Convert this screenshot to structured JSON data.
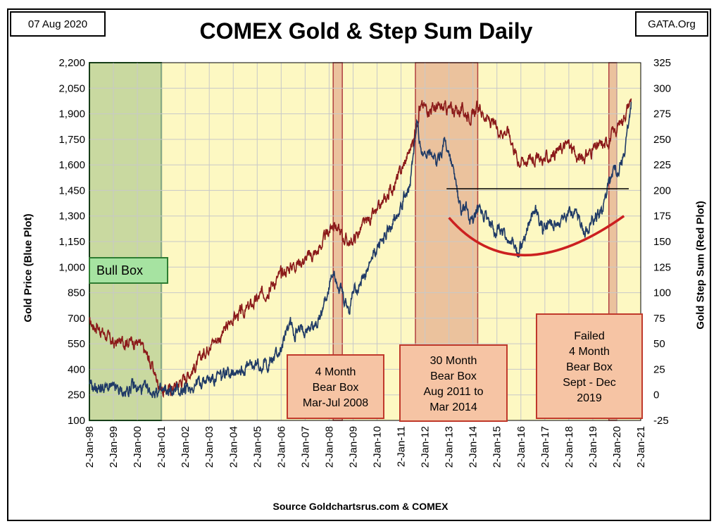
{
  "date_badge": "07 Aug 2020",
  "site_badge": "GATA.Org",
  "source": "Source Goldchartsrus.com & COMEX",
  "colors": {
    "plot_bg": "#fdf8c2",
    "gold_line": "#1f3a66",
    "step_sum_line": "#8b1a1a",
    "bull_box": "#c9d9a0",
    "bear_box": "#e8b896",
    "label_box": "#f6c4a4",
    "bull_label_box": "#a6e3a1",
    "trend_curve": "#cc2020"
  },
  "chart_data": {
    "type": "line",
    "title": "COMEX Gold & Step Sum Daily",
    "ylabel": "Gold Price   (Blue Plot)",
    "y2label": "Gold Step Sum   (Red Plot)",
    "ylim": [
      100,
      2200
    ],
    "y2lim": [
      -25,
      325
    ],
    "yticks": [
      "2,200",
      "2,050",
      "1,900",
      "1,750",
      "1,600",
      "1,450",
      "1,300",
      "1,150",
      "1,000",
      "850",
      "700",
      "550",
      "400",
      "250",
      "100"
    ],
    "y2ticks": [
      "325",
      "300",
      "275",
      "250",
      "225",
      "200",
      "175",
      "150",
      "125",
      "100",
      "75",
      "50",
      "25",
      "0",
      "-25"
    ],
    "xticks": [
      "2-Jan-98",
      "2-Jan-99",
      "2-Jan-00",
      "2-Jan-01",
      "2-Jan-02",
      "2-Jan-03",
      "2-Jan-04",
      "2-Jan-05",
      "2-Jan-06",
      "2-Jan-07",
      "2-Jan-08",
      "2-Jan-09",
      "2-Jan-10",
      "2-Jan-11",
      "2-Jan-12",
      "2-Jan-13",
      "2-Jan-14",
      "2-Jan-15",
      "2-Jan-16",
      "2-Jan-17",
      "2-Jan-18",
      "2-Jan-19",
      "2-Jan-20",
      "2-Jan-21"
    ],
    "grid": true,
    "series": [
      {
        "name": "Gold Price",
        "axis": "left",
        "x": [
          1998.0,
          1998.5,
          1999.0,
          1999.5,
          1999.75,
          2000.0,
          2000.5,
          2001.0,
          2001.5,
          2002.0,
          2002.5,
          2003.0,
          2003.5,
          2004.0,
          2004.5,
          2005.0,
          2005.5,
          2006.0,
          2006.4,
          2006.6,
          2007.0,
          2007.5,
          2008.0,
          2008.2,
          2008.6,
          2008.85,
          2009.0,
          2009.5,
          2010.0,
          2010.5,
          2011.0,
          2011.4,
          2011.67,
          2011.9,
          2012.2,
          2012.5,
          2012.8,
          2013.0,
          2013.3,
          2013.5,
          2013.7,
          2014.0,
          2014.2,
          2014.5,
          2015.0,
          2015.5,
          2015.9,
          2016.3,
          2016.6,
          2016.9,
          2017.3,
          2017.6,
          2018.0,
          2018.3,
          2018.7,
          2019.0,
          2019.4,
          2019.7,
          2020.0,
          2020.3,
          2020.6
        ],
        "y": [
          295,
          292,
          288,
          260,
          300,
          285,
          275,
          265,
          270,
          280,
          320,
          345,
          355,
          405,
          400,
          428,
          435,
          520,
          680,
          605,
          640,
          665,
          880,
          980,
          810,
          740,
          870,
          940,
          1115,
          1220,
          1380,
          1500,
          1850,
          1650,
          1700,
          1600,
          1750,
          1670,
          1480,
          1320,
          1350,
          1240,
          1320,
          1290,
          1220,
          1160,
          1080,
          1250,
          1350,
          1220,
          1250,
          1260,
          1330,
          1340,
          1200,
          1290,
          1330,
          1510,
          1560,
          1640,
          1970
        ]
      },
      {
        "name": "Gold Step Sum",
        "axis": "right",
        "x": [
          1998.0,
          1998.3,
          1998.7,
          1999.0,
          1999.5,
          1999.8,
          2000.0,
          2000.5,
          2000.9,
          2001.1,
          2001.5,
          2002.0,
          2002.5,
          2003.0,
          2003.5,
          2004.0,
          2004.5,
          2005.0,
          2005.5,
          2006.0,
          2006.5,
          2007.0,
          2007.5,
          2008.0,
          2008.2,
          2008.6,
          2008.9,
          2009.5,
          2010.0,
          2010.5,
          2011.0,
          2011.5,
          2011.75,
          2012.0,
          2012.5,
          2013.0,
          2013.5,
          2014.0,
          2014.2,
          2014.5,
          2015.0,
          2015.5,
          2015.9,
          2016.5,
          2017.0,
          2017.5,
          2018.0,
          2018.3,
          2018.6,
          2019.0,
          2019.5,
          2020.0,
          2020.3,
          2020.6
        ],
        "y": [
          70,
          67,
          58,
          50,
          53,
          53,
          52,
          35,
          10,
          3,
          7,
          18,
          30,
          50,
          58,
          75,
          82,
          93,
          105,
          118,
          128,
          133,
          140,
          160,
          168,
          154,
          148,
          168,
          178,
          197,
          218,
          248,
          280,
          282,
          280,
          280,
          278,
          273,
          282,
          272,
          260,
          258,
          228,
          232,
          230,
          238,
          246,
          232,
          232,
          240,
          245,
          260,
          273,
          290
        ]
      }
    ],
    "annotations": [
      {
        "label": "Bull Box",
        "from": 1998.0,
        "to": 2001.0,
        "kind": "bull"
      },
      {
        "label": "4 Month Bear Box Mar-Jul 2008",
        "lines": [
          "4 Month",
          "Bear Box",
          "Mar-Jul 2008"
        ],
        "from": 2008.17,
        "to": 2008.55,
        "kind": "bear"
      },
      {
        "label": "30 Month Bear Box Aug 2011 to Mar 2014",
        "lines": [
          "30 Month",
          "Bear Box",
          "Aug 2011 to",
          "Mar 2014"
        ],
        "from": 2011.6,
        "to": 2014.2,
        "kind": "bear"
      },
      {
        "label": "Failed 4 Month Bear Box Sept - Dec 2019",
        "lines": [
          "Failed",
          "4 Month",
          "Bear Box",
          "Sept - Dec",
          "2019"
        ],
        "from": 2019.67,
        "to": 2020.0,
        "kind": "bear"
      }
    ],
    "reference_line": {
      "from": 2012.9,
      "to": 2020.5,
      "y": 1460
    },
    "trend_curve": {
      "x": [
        2013.0,
        2016.2,
        2020.3
      ],
      "y": [
        1290,
        1070,
        1300
      ]
    }
  }
}
